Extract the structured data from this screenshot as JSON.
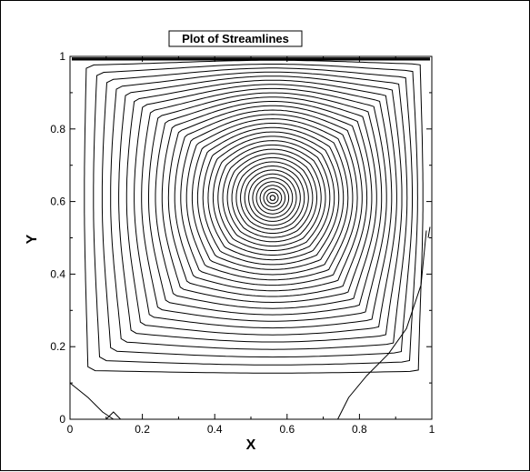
{
  "chart_data": {
    "type": "contour",
    "title": "Plot of Streamlines",
    "xlabel": "X",
    "ylabel": "Y",
    "xlim": [
      0,
      1
    ],
    "ylim": [
      0,
      1
    ],
    "xticks": [
      "0",
      "0.2",
      "0.4",
      "0.6",
      "0.8",
      "1"
    ],
    "yticks": [
      "0",
      "0.2",
      "0.4",
      "0.6",
      "0.8",
      "1"
    ],
    "grid": false,
    "vortex_center": [
      0.56,
      0.61
    ],
    "level_count": 34,
    "line_color": "#000000"
  }
}
